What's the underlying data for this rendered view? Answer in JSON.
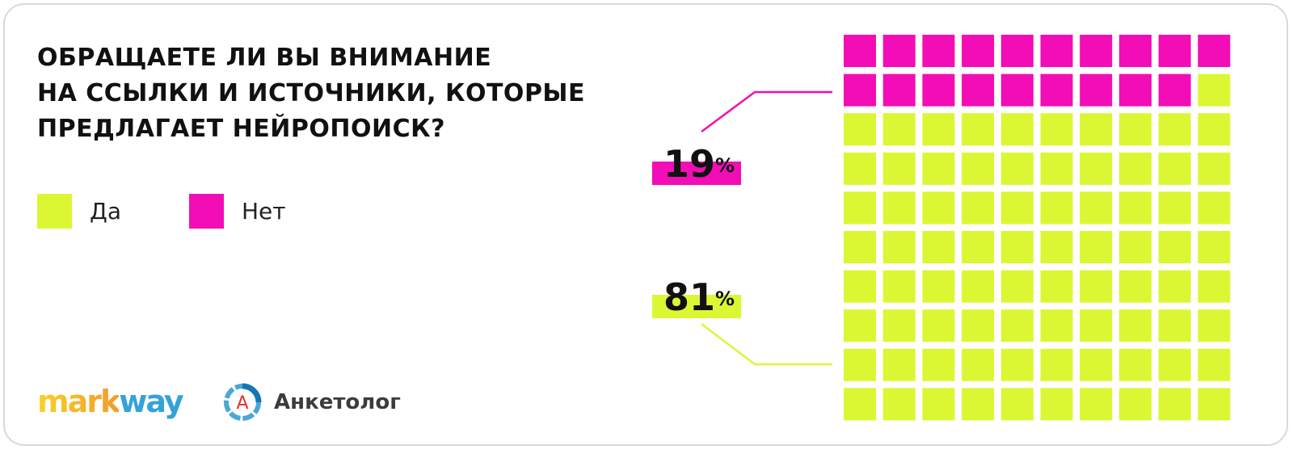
{
  "title_lines": [
    "ОБРАЩАЕТЕ ЛИ ВЫ ВНИМАНИЕ",
    "НА ССЫЛКИ И ИСТОЧНИКИ, КОТОРЫЕ",
    "ПРЕДЛАГАЕТ НЕЙРОПОИСК?"
  ],
  "legend": [
    {
      "label": "Да",
      "color": "#dbf733"
    },
    {
      "label": "Нет",
      "color": "#f20db6"
    }
  ],
  "callouts": {
    "no": {
      "value": "19",
      "unit": "%"
    },
    "yes": {
      "value": "81",
      "unit": "%"
    }
  },
  "logos": {
    "markway": "markway",
    "anketolog": "Анкетолог",
    "anketolog_mark": "А"
  },
  "chart_data": {
    "type": "waffle",
    "grid": [
      10,
      10
    ],
    "fill_order": "top-left, row by row",
    "categories": [
      "Нет",
      "Да"
    ],
    "values": [
      19,
      81
    ],
    "unit": "%",
    "colors": [
      "#f20db6",
      "#dbf733"
    ]
  }
}
